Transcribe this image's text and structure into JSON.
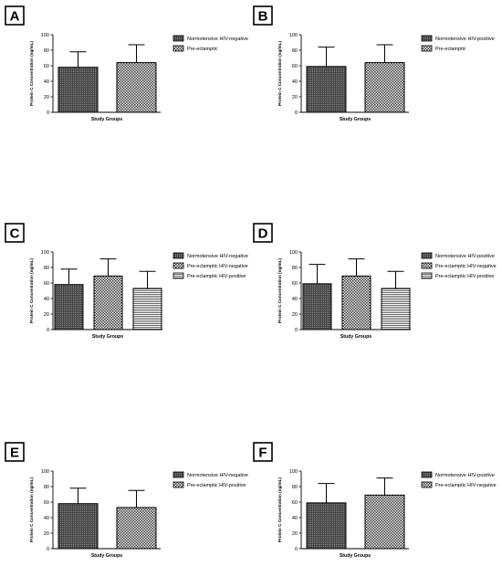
{
  "colors": {
    "axis": "#000000",
    "bar_edge": "#000000",
    "background": "#ffffff"
  },
  "fill_patterns": [
    "dark-grid",
    "checker",
    "horizontal-lines"
  ],
  "chart_data": [
    {
      "panel": "A",
      "type": "bar",
      "ylabel": "Protein C Concentration (ng/mL)",
      "xlabel": "Study Groups",
      "ylim": [
        0,
        100
      ],
      "yticks": [
        0,
        20,
        40,
        60,
        80,
        100
      ],
      "legend_position": "right",
      "series": [
        {
          "name": "Normotensive HIV-negative",
          "value": 58,
          "error": 20,
          "pattern": "dark-grid"
        },
        {
          "name": "Pre-eclamptic",
          "value": 64,
          "error": 23,
          "pattern": "checker"
        }
      ]
    },
    {
      "panel": "B",
      "type": "bar",
      "ylabel": "Protein C Concentration (ng/mL)",
      "xlabel": "Study Groups",
      "ylim": [
        0,
        100
      ],
      "yticks": [
        0,
        20,
        40,
        60,
        80,
        100
      ],
      "legend_position": "right",
      "series": [
        {
          "name": "Normotensive HIV-positive",
          "value": 59,
          "error": 25,
          "pattern": "dark-grid"
        },
        {
          "name": "Pre-eclamptic",
          "value": 64,
          "error": 23,
          "pattern": "checker"
        }
      ]
    },
    {
      "panel": "C",
      "type": "bar",
      "ylabel": "Protein C Concentration (ng/mL)",
      "xlabel": "Study Groups",
      "ylim": [
        0,
        100
      ],
      "yticks": [
        0,
        20,
        40,
        60,
        80,
        100
      ],
      "legend_position": "right",
      "series": [
        {
          "name": "Normotensive HIV-negative",
          "value": 58,
          "error": 20,
          "pattern": "dark-grid"
        },
        {
          "name": "Pre-eclamptic HIV-negative",
          "value": 69,
          "error": 22,
          "pattern": "checker"
        },
        {
          "name": "Pre-eclamptic HIV-positive",
          "value": 53,
          "error": 22,
          "pattern": "horizontal-lines"
        }
      ]
    },
    {
      "panel": "D",
      "type": "bar",
      "ylabel": "Protein C Concentration (ng/mL)",
      "xlabel": "Study Groups",
      "ylim": [
        0,
        100
      ],
      "yticks": [
        0,
        20,
        40,
        60,
        80,
        100
      ],
      "legend_position": "right",
      "series": [
        {
          "name": "Normotensive HIV-positive",
          "value": 59,
          "error": 25,
          "pattern": "dark-grid"
        },
        {
          "name": "Pre-eclamptic HIV-negative",
          "value": 69,
          "error": 22,
          "pattern": "checker"
        },
        {
          "name": "Pre-eclamptic HIV-positive",
          "value": 53,
          "error": 22,
          "pattern": "horizontal-lines"
        }
      ]
    },
    {
      "panel": "E",
      "type": "bar",
      "ylabel": "Protein C Concentration (ng/mL)",
      "xlabel": "Study Groups",
      "ylim": [
        0,
        100
      ],
      "yticks": [
        0,
        20,
        40,
        60,
        80,
        100
      ],
      "legend_position": "right",
      "series": [
        {
          "name": "Normotensive HIV-negative",
          "value": 58,
          "error": 20,
          "pattern": "dark-grid"
        },
        {
          "name": "Pre-eclamptic HIV-positive",
          "value": 53,
          "error": 22,
          "pattern": "checker"
        }
      ]
    },
    {
      "panel": "F",
      "type": "bar",
      "ylabel": "Protein C Concentration (ng/mL)",
      "xlabel": "Study Groups",
      "ylim": [
        0,
        100
      ],
      "yticks": [
        0,
        20,
        40,
        60,
        80,
        100
      ],
      "legend_position": "right",
      "series": [
        {
          "name": "Normotensive HIV-positive",
          "value": 59,
          "error": 25,
          "pattern": "dark-grid"
        },
        {
          "name": "Pre-eclamptic HIV-negative",
          "value": 69,
          "error": 22,
          "pattern": "checker"
        }
      ]
    }
  ]
}
